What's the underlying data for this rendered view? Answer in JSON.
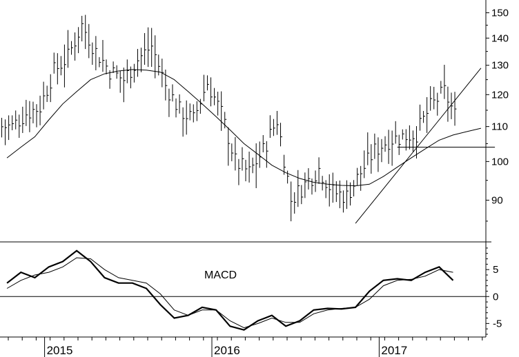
{
  "chart_data": [
    {
      "type": "ohlc",
      "panel": "price",
      "yscale": "log",
      "ylim": [
        82,
        153
      ],
      "yticks": [
        90,
        100,
        110,
        120,
        130,
        140,
        150
      ],
      "x": [
        "2014-10",
        "2014-11",
        "2014-12",
        "2015-01",
        "2015-02",
        "2015-03",
        "2015-04",
        "2015-05",
        "2015-06",
        "2015-07",
        "2015-08",
        "2015-09",
        "2015-10",
        "2015-11",
        "2015-12",
        "2016-01",
        "2016-02",
        "2016-03",
        "2016-04",
        "2016-05",
        "2016-06",
        "2016-07",
        "2016-08",
        "2016-09",
        "2016-10",
        "2016-11",
        "2016-12",
        "2017-01",
        "2017-02",
        "2017-03",
        "2017-04",
        "2017-05",
        "2017-06",
        "2017-07",
        "2017-08"
      ],
      "close": [
        110,
        114,
        116,
        128,
        133,
        145,
        135,
        128,
        125,
        132,
        137,
        123,
        115,
        112,
        124,
        114,
        100,
        97,
        103,
        112,
        90,
        94,
        98,
        92,
        91,
        97,
        103,
        106,
        107,
        108,
        116,
        121,
        111,
        108,
        110
      ],
      "moving_average": [
        101,
        104,
        107,
        112,
        117,
        121,
        125,
        127,
        128,
        128.5,
        128.3,
        127.6,
        125,
        121,
        117,
        113,
        109,
        105,
        102,
        99,
        97,
        95.5,
        94.5,
        94,
        93.7,
        93.6,
        94,
        96,
        98.5,
        101,
        103.5,
        106,
        107.5,
        108.5,
        109.5
      ],
      "trendlines": [
        {
          "from": [
            "2016-11",
            84.5
          ],
          "to": [
            "2017-08",
            129
          ]
        },
        {
          "from": [
            "2017-02",
            104
          ],
          "to": [
            "2017-09",
            104
          ]
        }
      ],
      "x_year_labels": [
        "2015",
        "2016",
        "2017"
      ]
    },
    {
      "type": "line",
      "panel": "indicator",
      "title": "MACD",
      "ylim": [
        -7,
        9.5
      ],
      "yticks": [
        -5,
        0,
        5
      ],
      "zero_line": true,
      "x": [
        "2014-10",
        "2014-11",
        "2014-12",
        "2015-01",
        "2015-02",
        "2015-03",
        "2015-04",
        "2015-05",
        "2015-06",
        "2015-07",
        "2015-08",
        "2015-09",
        "2015-10",
        "2015-11",
        "2015-12",
        "2016-01",
        "2016-02",
        "2016-03",
        "2016-04",
        "2016-05",
        "2016-06",
        "2016-07",
        "2016-08",
        "2016-09",
        "2016-10",
        "2016-11",
        "2016-12",
        "2017-01",
        "2017-02",
        "2017-03",
        "2017-04",
        "2017-05",
        "2017-06",
        "2017-07",
        "2017-08"
      ],
      "series": [
        {
          "values": [
            2.5,
            4.5,
            3.5,
            5.5,
            6.5,
            8.5,
            6.5,
            3.5,
            2.5,
            2.5,
            1.5,
            -1.5,
            -4,
            -3.5,
            -2,
            -2.5,
            -5.5,
            -6.2,
            -4.5,
            -3.5,
            -5.5,
            -4.5,
            -2.5,
            -2.2,
            -2.3,
            -2.0,
            1.0,
            3.0,
            3.3,
            3.0,
            4.5,
            5.5,
            3.0,
            0.5,
            0.3
          ]
        },
        {
          "values": [
            1.5,
            3.0,
            4.0,
            4.5,
            5.5,
            7.2,
            7.0,
            5.0,
            3.5,
            3.0,
            2.5,
            0.5,
            -2.5,
            -3.5,
            -2.5,
            -2.5,
            -4.5,
            -5.8,
            -5.0,
            -4.0,
            -4.8,
            -4.8,
            -3.2,
            -2.5,
            -2.2,
            -2.0,
            -0.5,
            2.0,
            3.0,
            3.2,
            3.8,
            5.0,
            4.5,
            2.0,
            1.0
          ]
        }
      ]
    }
  ]
}
